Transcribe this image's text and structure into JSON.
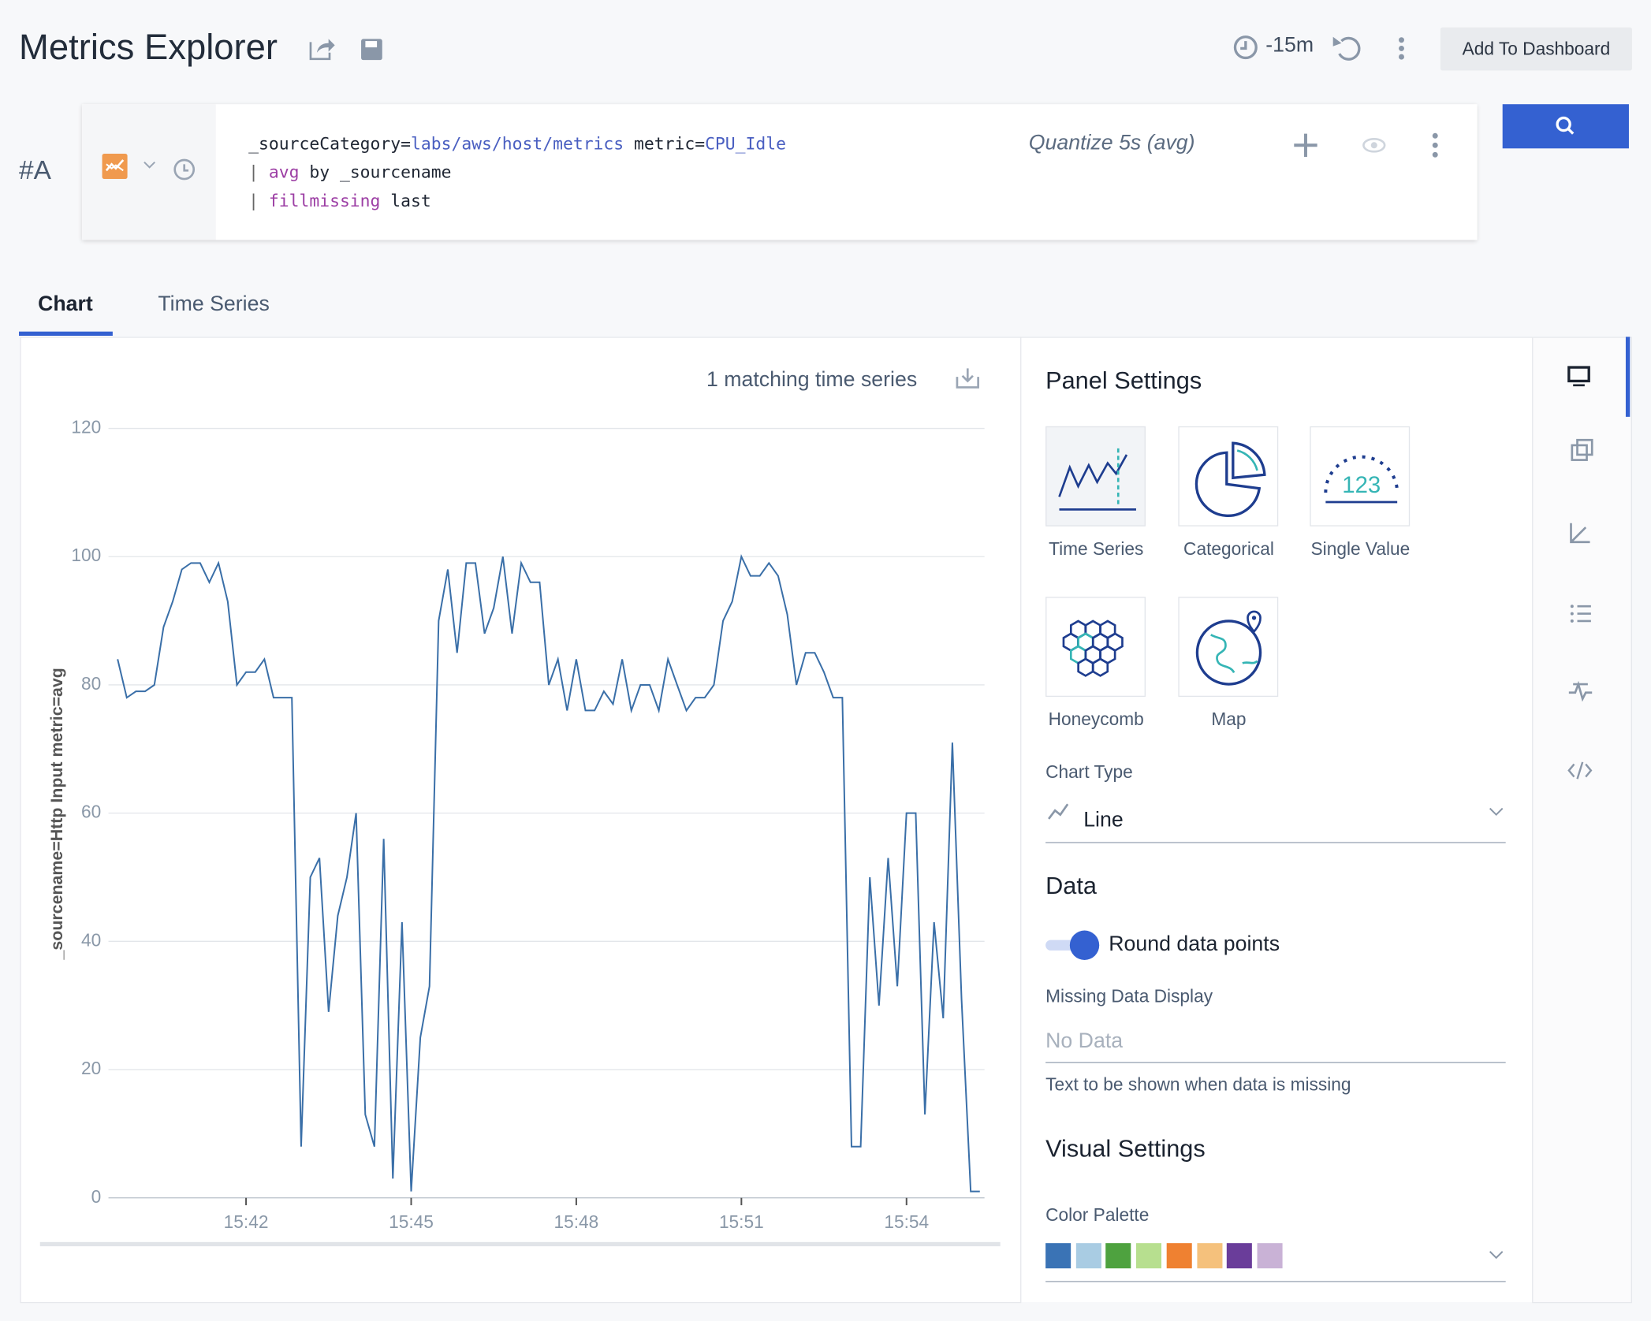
{
  "header": {
    "title": "Metrics Explorer",
    "time_range": "-15m",
    "add_button": "Add To Dashboard"
  },
  "query": {
    "label": "#A",
    "lines": [
      [
        {
          "text": "_sourceCategory=",
          "style": "plain"
        },
        {
          "text": "labs/aws/host/metrics",
          "style": "value"
        },
        {
          "text": " metric=",
          "style": "plain"
        },
        {
          "text": "CPU_Idle",
          "style": "value"
        }
      ],
      [
        {
          "text": "| ",
          "style": "pipe"
        },
        {
          "text": "avg",
          "style": "op"
        },
        {
          "text": " by _sourcename",
          "style": "plain"
        }
      ],
      [
        {
          "text": "| ",
          "style": "pipe"
        },
        {
          "text": "fillmissing",
          "style": "op"
        },
        {
          "text": " last",
          "style": "plain"
        }
      ]
    ],
    "quantize": "Quantize 5s (avg)"
  },
  "tabs": [
    "Chart",
    "Time Series"
  ],
  "matching": "1 matching time series",
  "chart_data": {
    "type": "line",
    "y_label": "_sourcename=Http Input metric=avg",
    "x": [
      "15:39:40",
      "15:39:50",
      "15:40:00",
      "15:40:10",
      "15:40:20",
      "15:40:30",
      "15:40:40",
      "15:40:50",
      "15:41:00",
      "15:41:10",
      "15:41:20",
      "15:41:30",
      "15:41:40",
      "15:41:50",
      "15:42:00",
      "15:42:10",
      "15:42:20",
      "15:42:30",
      "15:42:40",
      "15:42:50",
      "15:43:00",
      "15:43:10",
      "15:43:20",
      "15:43:30",
      "15:43:40",
      "15:43:50",
      "15:44:00",
      "15:44:10",
      "15:44:20",
      "15:44:30",
      "15:44:40",
      "15:44:50",
      "15:45:00",
      "15:45:10",
      "15:45:20",
      "15:45:30",
      "15:45:40",
      "15:45:50",
      "15:46:00",
      "15:46:10",
      "15:46:20",
      "15:46:30",
      "15:46:40",
      "15:46:50",
      "15:47:00",
      "15:47:10",
      "15:47:20",
      "15:47:30",
      "15:47:40",
      "15:47:50",
      "15:48:00",
      "15:48:10",
      "15:48:20",
      "15:48:30",
      "15:48:40",
      "15:48:50",
      "15:49:00",
      "15:49:10",
      "15:49:20",
      "15:49:30",
      "15:49:40",
      "15:49:50",
      "15:50:00",
      "15:50:10",
      "15:50:20",
      "15:50:30",
      "15:50:40",
      "15:50:50",
      "15:51:00",
      "15:51:10",
      "15:51:20",
      "15:51:30",
      "15:51:40",
      "15:51:50",
      "15:52:00",
      "15:52:10",
      "15:52:20",
      "15:52:30",
      "15:52:40",
      "15:52:50",
      "15:53:00",
      "15:53:10",
      "15:53:20",
      "15:53:30",
      "15:53:40",
      "15:53:50",
      "15:54:00",
      "15:54:10",
      "15:54:20",
      "15:54:30",
      "15:54:40",
      "15:54:50",
      "15:55:00",
      "15:55:10",
      "15:55:20"
    ],
    "series": [
      {
        "color": "#3a6fa8",
        "values": [
          84,
          78,
          79,
          79,
          80,
          89,
          93,
          98,
          99,
          99,
          96,
          99,
          93,
          80,
          82,
          82,
          84,
          78,
          78,
          78,
          8,
          50,
          53,
          29,
          44,
          50,
          60,
          13,
          8,
          56,
          3,
          43,
          1,
          25,
          33,
          90,
          98,
          85,
          99,
          99,
          88,
          92,
          100,
          88,
          99,
          96,
          96,
          80,
          84,
          76,
          84,
          76,
          76,
          79,
          77,
          84,
          76,
          80,
          80,
          76,
          84,
          80,
          76,
          78,
          78,
          80,
          90,
          93,
          100,
          97,
          97,
          99,
          97,
          91,
          80,
          85,
          85,
          82,
          78,
          78,
          8,
          8,
          50,
          30,
          53,
          33,
          60,
          60,
          13,
          43,
          28,
          71,
          31,
          1,
          1
        ]
      }
    ],
    "xlim": [
      "15:39:30",
      "15:55:25"
    ],
    "xticks": [
      "15:42",
      "15:45",
      "15:48",
      "15:51",
      "15:54"
    ],
    "ylim": [
      0,
      120
    ],
    "yticks": [
      0,
      20,
      40,
      60,
      80,
      100,
      120
    ],
    "grid": true
  },
  "panel": {
    "title": "Panel Settings",
    "chart_kinds": [
      "Time Series",
      "Categorical",
      "Single Value",
      "Honeycomb",
      "Map"
    ],
    "chart_type_label": "Chart Type",
    "chart_type": "Line",
    "data_title": "Data",
    "round_points": "Round data points",
    "missing_label": "Missing Data Display",
    "missing_placeholder": "No Data",
    "missing_help": "Text to be shown when data is missing",
    "visual_title": "Visual Settings",
    "palette_label": "Color Palette",
    "palette": [
      "#3a73b5",
      "#a9cce3",
      "#4ea23f",
      "#b7df8f",
      "#ef8131",
      "#f5c17c",
      "#6a3d9a",
      "#c9b2d6"
    ]
  }
}
